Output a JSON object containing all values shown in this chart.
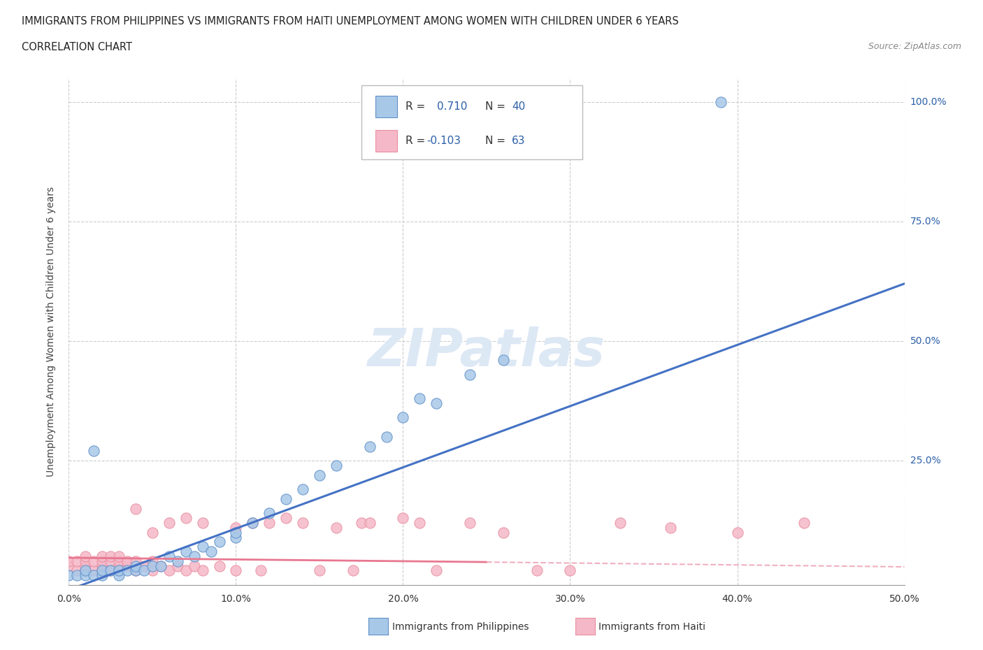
{
  "title_line1": "IMMIGRANTS FROM PHILIPPINES VS IMMIGRANTS FROM HAITI UNEMPLOYMENT AMONG WOMEN WITH CHILDREN UNDER 6 YEARS",
  "title_line2": "CORRELATION CHART",
  "source": "Source: ZipAtlas.com",
  "ylabel_label": "Unemployment Among Women with Children Under 6 years",
  "xlim": [
    0.0,
    0.5
  ],
  "ylim": [
    -0.01,
    1.05
  ],
  "xtick_labels": [
    "0.0%",
    "10.0%",
    "20.0%",
    "30.0%",
    "40.0%",
    "50.0%"
  ],
  "xtick_values": [
    0.0,
    0.1,
    0.2,
    0.3,
    0.4,
    0.5
  ],
  "ytick_labels": [
    "25.0%",
    "50.0%",
    "75.0%",
    "100.0%"
  ],
  "ytick_values": [
    0.25,
    0.5,
    0.75,
    1.0
  ],
  "color_philippines": "#a8c8e8",
  "color_haiti": "#f5b8c8",
  "color_trend_philippines": "#4472c4",
  "color_trend_haiti_solid": "#e87890",
  "color_trend_haiti_dashed": "#f0b0c0",
  "R_philippines": 0.71,
  "N_philippines": 40,
  "R_haiti": -0.103,
  "N_haiti": 63,
  "legend_R_color": "#2c5fa8",
  "watermark": "ZIPatlas",
  "philippines_x": [
    0.0,
    0.005,
    0.01,
    0.01,
    0.015,
    0.02,
    0.02,
    0.025,
    0.03,
    0.03,
    0.035,
    0.04,
    0.04,
    0.045,
    0.05,
    0.055,
    0.06,
    0.065,
    0.07,
    0.075,
    0.08,
    0.085,
    0.09,
    0.1,
    0.1,
    0.11,
    0.12,
    0.13,
    0.14,
    0.15,
    0.16,
    0.18,
    0.19,
    0.2,
    0.21,
    0.22,
    0.24,
    0.26,
    0.39,
    0.015
  ],
  "philippines_y": [
    0.01,
    0.01,
    0.01,
    0.02,
    0.01,
    0.01,
    0.02,
    0.02,
    0.01,
    0.02,
    0.02,
    0.02,
    0.03,
    0.02,
    0.03,
    0.03,
    0.05,
    0.04,
    0.06,
    0.05,
    0.07,
    0.06,
    0.08,
    0.09,
    0.1,
    0.12,
    0.14,
    0.17,
    0.19,
    0.22,
    0.24,
    0.28,
    0.3,
    0.34,
    0.38,
    0.37,
    0.43,
    0.46,
    1.0,
    0.27
  ],
  "haiti_x": [
    0.0,
    0.0,
    0.005,
    0.005,
    0.01,
    0.01,
    0.01,
    0.01,
    0.015,
    0.015,
    0.02,
    0.02,
    0.02,
    0.02,
    0.025,
    0.025,
    0.025,
    0.03,
    0.03,
    0.03,
    0.03,
    0.035,
    0.035,
    0.04,
    0.04,
    0.04,
    0.045,
    0.05,
    0.05,
    0.05,
    0.055,
    0.06,
    0.06,
    0.065,
    0.07,
    0.07,
    0.075,
    0.08,
    0.08,
    0.09,
    0.1,
    0.1,
    0.11,
    0.115,
    0.12,
    0.13,
    0.14,
    0.15,
    0.16,
    0.17,
    0.175,
    0.18,
    0.2,
    0.21,
    0.22,
    0.24,
    0.26,
    0.28,
    0.3,
    0.33,
    0.36,
    0.4,
    0.44
  ],
  "haiti_y": [
    0.03,
    0.04,
    0.02,
    0.04,
    0.02,
    0.03,
    0.04,
    0.05,
    0.02,
    0.04,
    0.02,
    0.03,
    0.04,
    0.05,
    0.02,
    0.04,
    0.05,
    0.02,
    0.03,
    0.04,
    0.05,
    0.03,
    0.04,
    0.02,
    0.04,
    0.15,
    0.03,
    0.02,
    0.04,
    0.1,
    0.03,
    0.02,
    0.12,
    0.03,
    0.02,
    0.13,
    0.03,
    0.02,
    0.12,
    0.03,
    0.02,
    0.11,
    0.12,
    0.02,
    0.12,
    0.13,
    0.12,
    0.02,
    0.11,
    0.02,
    0.12,
    0.12,
    0.13,
    0.12,
    0.02,
    0.12,
    0.1,
    0.02,
    0.02,
    0.12,
    0.11,
    0.1,
    0.12
  ],
  "trend_ph_x0": 0.0,
  "trend_ph_x1": 0.5,
  "trend_ph_y0": -0.02,
  "trend_ph_y1": 0.62,
  "trend_ht_solid_x0": 0.0,
  "trend_ht_solid_x1": 0.25,
  "trend_ht_solid_y0": 0.047,
  "trend_ht_solid_y1": 0.038,
  "trend_ht_dash_x0": 0.25,
  "trend_ht_dash_x1": 0.5,
  "trend_ht_dash_y0": 0.038,
  "trend_ht_dash_y1": 0.028
}
